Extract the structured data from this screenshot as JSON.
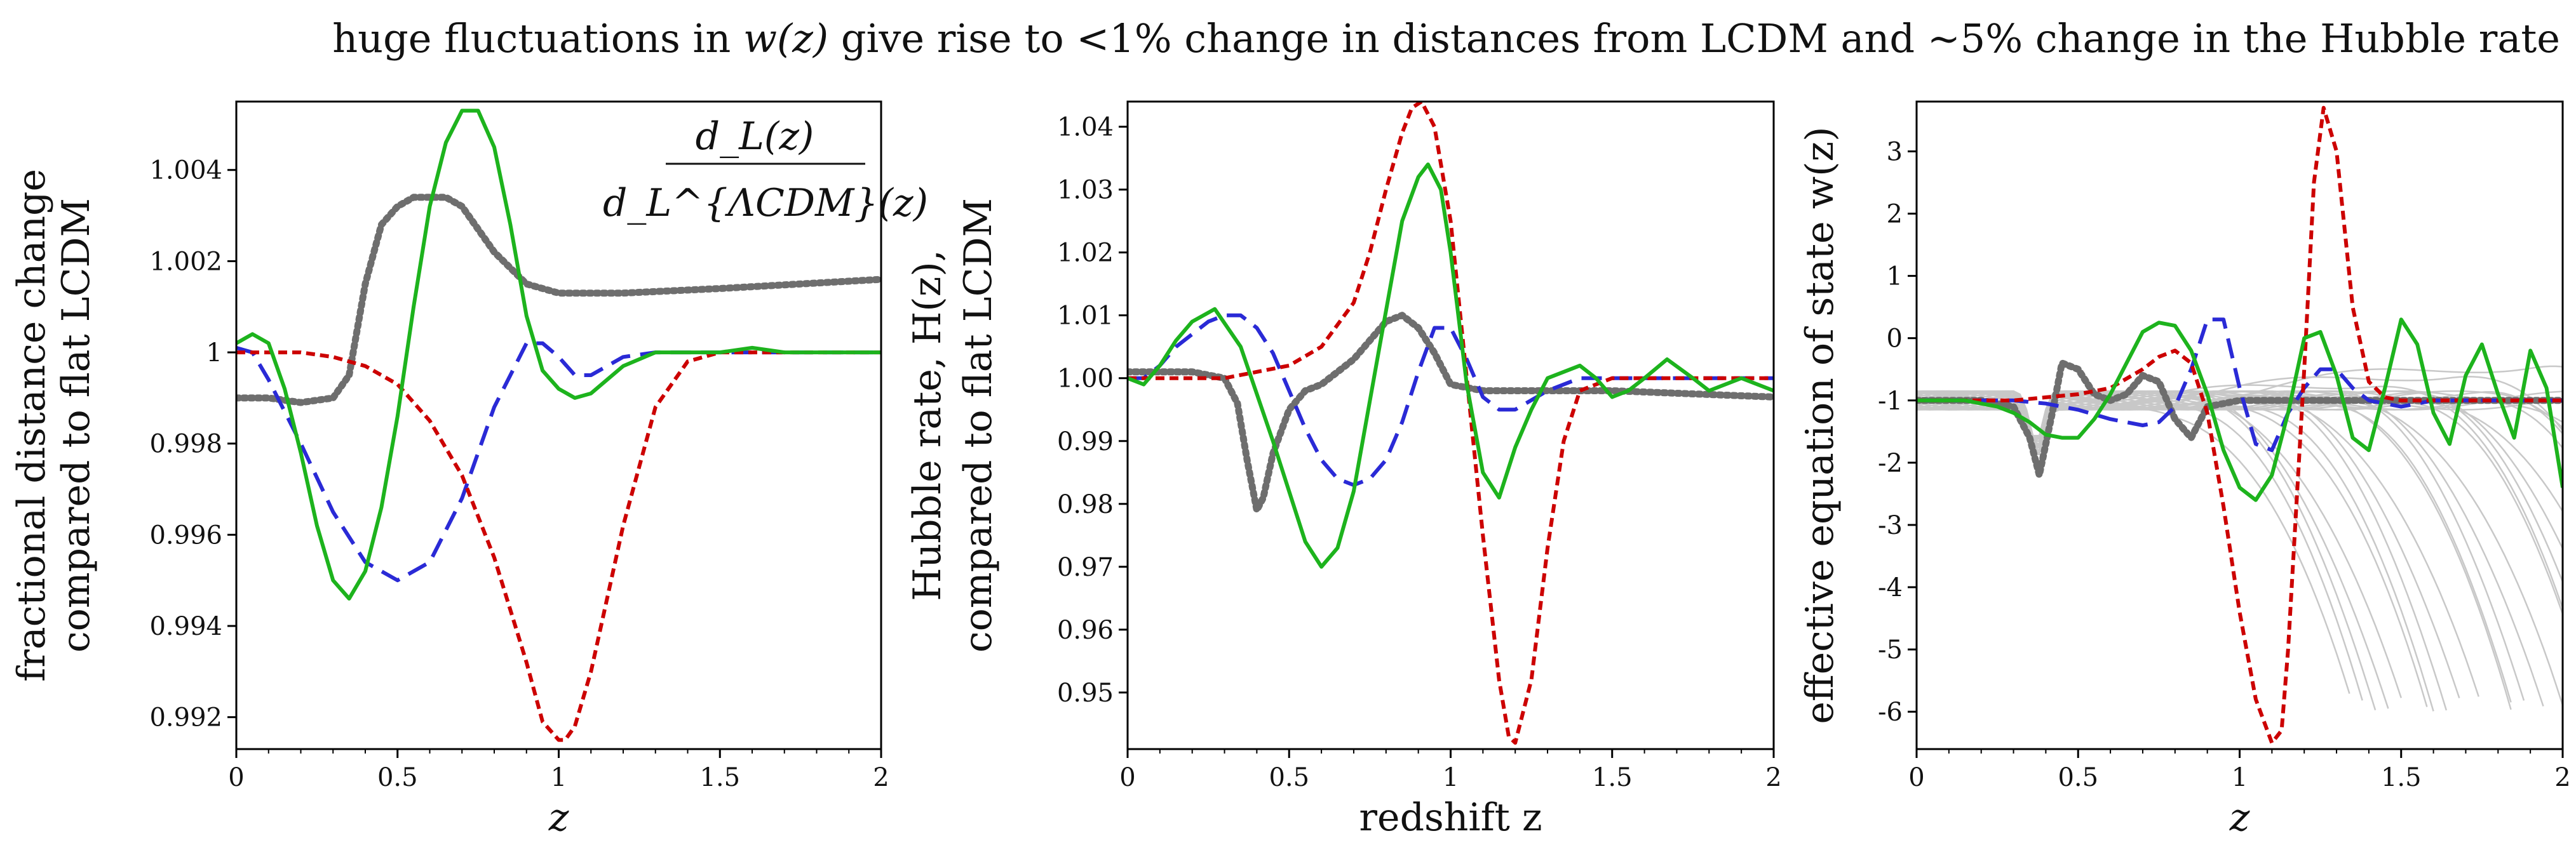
{
  "title_parts": [
    "huge fluctuations in ",
    "w(z)",
    " give rise to <1% change in distances from LCDM and ~5% change in the Hubble rate"
  ],
  "colors": {
    "green": "#1db31d",
    "red": "#cc0000",
    "blue": "#2a2ad6",
    "gray": "#6e6e6e",
    "background_curves": "#c8c8c8",
    "axis": "#000000"
  },
  "chart_data": [
    {
      "type": "line",
      "xlabel": "z",
      "ylabel": [
        "fractional distance change",
        "compared to flat LCDM"
      ],
      "annotation": {
        "numerator": "d_L(z)",
        "denominator": "d_L^{ΛCDM}(z)"
      },
      "xlim": [
        0,
        2
      ],
      "ylim": [
        0.9913,
        1.0055
      ],
      "xticks": [
        0,
        0.5,
        1,
        1.5,
        2
      ],
      "xtick_labels": [
        "0",
        "0.5",
        "1",
        "1.5",
        "2"
      ],
      "yticks": [
        0.992,
        0.994,
        0.996,
        0.998,
        1,
        1.002,
        1.004
      ],
      "ytick_labels": [
        "0.992",
        "0.994",
        "0.996",
        "0.998",
        "1",
        "1.002",
        "1.004"
      ],
      "series": [
        {
          "name": "green",
          "style": "solid",
          "x": [
            0,
            0.05,
            0.1,
            0.15,
            0.2,
            0.25,
            0.3,
            0.35,
            0.4,
            0.45,
            0.5,
            0.55,
            0.6,
            0.65,
            0.7,
            0.75,
            0.8,
            0.85,
            0.9,
            0.95,
            1.0,
            1.05,
            1.1,
            1.15,
            1.2,
            1.3,
            1.4,
            1.5,
            1.6,
            1.7,
            2.0
          ],
          "y": [
            1.0002,
            1.0004,
            1.0002,
            0.9992,
            0.9978,
            0.9962,
            0.995,
            0.9946,
            0.9952,
            0.9966,
            0.9986,
            1.001,
            1.0032,
            1.0046,
            1.0053,
            1.0053,
            1.0045,
            1.0028,
            1.0008,
            0.9996,
            0.9992,
            0.999,
            0.9991,
            0.9994,
            0.9997,
            1.0,
            1.0,
            1.0,
            1.0001,
            1.0,
            1.0
          ]
        },
        {
          "name": "red",
          "style": "dashed-fine",
          "x": [
            0,
            0.2,
            0.3,
            0.4,
            0.5,
            0.6,
            0.7,
            0.8,
            0.9,
            0.95,
            1.0,
            1.02,
            1.05,
            1.1,
            1.2,
            1.3,
            1.4,
            1.5,
            2.0
          ],
          "y": [
            1.0,
            1.0,
            0.9999,
            0.9997,
            0.9993,
            0.9985,
            0.9973,
            0.9955,
            0.9932,
            0.9919,
            0.9915,
            0.9915,
            0.9918,
            0.993,
            0.9962,
            0.9988,
            0.9998,
            1.0,
            1.0
          ]
        },
        {
          "name": "blue",
          "style": "dashed",
          "x": [
            0,
            0.05,
            0.1,
            0.2,
            0.3,
            0.4,
            0.5,
            0.6,
            0.7,
            0.8,
            0.9,
            0.95,
            1.0,
            1.05,
            1.1,
            1.15,
            1.2,
            1.3,
            1.4,
            1.5,
            2.0
          ],
          "y": [
            1.0001,
            1.0,
            0.9994,
            0.998,
            0.9965,
            0.9954,
            0.995,
            0.9954,
            0.9968,
            0.9988,
            1.0002,
            1.0002,
            0.9999,
            0.9995,
            0.9995,
            0.9997,
            0.9999,
            1.0,
            1.0,
            1.0,
            1.0
          ]
        },
        {
          "name": "gray",
          "style": "dotted",
          "x": [
            0,
            0.1,
            0.2,
            0.3,
            0.35,
            0.4,
            0.45,
            0.5,
            0.55,
            0.6,
            0.65,
            0.7,
            0.8,
            0.9,
            1.0,
            1.2,
            1.5,
            2.0
          ],
          "y": [
            0.999,
            0.999,
            0.9989,
            0.999,
            0.9995,
            1.0015,
            1.0028,
            1.0032,
            1.0034,
            1.0034,
            1.0034,
            1.0032,
            1.0022,
            1.0015,
            1.0013,
            1.0013,
            1.0014,
            1.0016
          ]
        }
      ]
    },
    {
      "type": "line",
      "xlabel": "redshift z",
      "ylabel": [
        "Hubble rate, H(z),",
        "compared to flat LCDM"
      ],
      "xlim": [
        0,
        2
      ],
      "ylim": [
        0.941,
        1.044
      ],
      "xticks": [
        0,
        0.5,
        1,
        1.5,
        2
      ],
      "xtick_labels": [
        "0",
        "0.5",
        "1",
        "1.5",
        "2"
      ],
      "yticks": [
        0.95,
        0.96,
        0.97,
        0.98,
        0.99,
        1.0,
        1.01,
        1.02,
        1.03,
        1.04
      ],
      "ytick_labels": [
        "0.95",
        "0.96",
        "0.97",
        "0.98",
        "0.99",
        "1.00",
        "1.01",
        "1.02",
        "1.03",
        "1.04"
      ],
      "series": [
        {
          "name": "green",
          "style": "solid",
          "x": [
            0,
            0.05,
            0.1,
            0.15,
            0.2,
            0.27,
            0.35,
            0.45,
            0.55,
            0.6,
            0.65,
            0.7,
            0.78,
            0.85,
            0.9,
            0.93,
            0.97,
            1.0,
            1.05,
            1.1,
            1.15,
            1.2,
            1.25,
            1.3,
            1.35,
            1.4,
            1.45,
            1.5,
            1.55,
            1.6,
            1.67,
            1.75,
            1.8,
            1.9,
            2.0
          ],
          "y": [
            1.0,
            0.999,
            1.002,
            1.006,
            1.009,
            1.011,
            1.005,
            0.99,
            0.974,
            0.97,
            0.973,
            0.982,
            1.005,
            1.025,
            1.032,
            1.034,
            1.03,
            1.02,
            0.999,
            0.985,
            0.981,
            0.989,
            0.995,
            1.0,
            1.001,
            1.002,
            1.0,
            0.997,
            0.998,
            1.0,
            1.003,
            1.0,
            0.998,
            1.0,
            0.998
          ]
        },
        {
          "name": "red",
          "style": "dashed-fine",
          "x": [
            0,
            0.2,
            0.3,
            0.4,
            0.5,
            0.6,
            0.7,
            0.75,
            0.8,
            0.85,
            0.88,
            0.91,
            0.95,
            1.0,
            1.05,
            1.1,
            1.15,
            1.18,
            1.2,
            1.25,
            1.3,
            1.35,
            1.4,
            1.5,
            1.6,
            2.0
          ],
          "y": [
            1.0,
            1.0,
            1.0,
            1.001,
            1.002,
            1.005,
            1.012,
            1.02,
            1.03,
            1.039,
            1.043,
            1.044,
            1.04,
            1.025,
            1.0,
            0.975,
            0.952,
            0.943,
            0.942,
            0.952,
            0.973,
            0.99,
            0.998,
            1.0,
            1.0,
            1.0
          ]
        },
        {
          "name": "blue",
          "style": "dashed",
          "x": [
            0,
            0.05,
            0.1,
            0.15,
            0.2,
            0.25,
            0.3,
            0.35,
            0.4,
            0.45,
            0.5,
            0.55,
            0.6,
            0.65,
            0.7,
            0.75,
            0.8,
            0.85,
            0.9,
            0.95,
            1.0,
            1.05,
            1.1,
            1.15,
            1.2,
            1.3,
            1.4,
            1.5,
            1.6,
            2.0
          ],
          "y": [
            1.0,
            1.0,
            1.002,
            1.005,
            1.007,
            1.009,
            1.01,
            1.01,
            1.008,
            1.004,
            0.998,
            0.992,
            0.987,
            0.984,
            0.983,
            0.984,
            0.987,
            0.993,
            1.001,
            1.008,
            1.008,
            1.003,
            0.997,
            0.995,
            0.995,
            0.998,
            1.0,
            1.0,
            1.0,
            1.0
          ]
        },
        {
          "name": "gray",
          "style": "dotted",
          "x": [
            0,
            0.1,
            0.2,
            0.3,
            0.34,
            0.37,
            0.4,
            0.42,
            0.45,
            0.5,
            0.55,
            0.6,
            0.7,
            0.8,
            0.85,
            0.9,
            0.95,
            1.0,
            1.1,
            1.2,
            1.5,
            2.0
          ],
          "y": [
            1.001,
            1.001,
            1.001,
            1.0,
            0.996,
            0.987,
            0.979,
            0.981,
            0.988,
            0.995,
            0.998,
            0.999,
            1.003,
            1.009,
            1.01,
            1.008,
            1.004,
            0.999,
            0.998,
            0.998,
            0.998,
            0.997
          ]
        }
      ]
    },
    {
      "type": "line",
      "xlabel": "z",
      "ylabel": [
        "effective equation of state w(z)"
      ],
      "xlim": [
        0,
        2
      ],
      "ylim": [
        -6.6,
        3.8
      ],
      "xticks": [
        0,
        0.5,
        1,
        1.5,
        2
      ],
      "xtick_labels": [
        "0",
        "0.5",
        "1",
        "1.5",
        "2"
      ],
      "yticks": [
        -6,
        -5,
        -4,
        -3,
        -2,
        -1,
        0,
        1,
        2,
        3
      ],
      "ytick_labels": [
        "-6",
        "-5",
        "-4",
        "-3",
        "-2",
        "-1",
        "0",
        "1",
        "2",
        "3"
      ],
      "series": [
        {
          "name": "green",
          "style": "solid",
          "x": [
            0,
            0.05,
            0.1,
            0.15,
            0.2,
            0.25,
            0.3,
            0.35,
            0.4,
            0.45,
            0.5,
            0.55,
            0.6,
            0.65,
            0.7,
            0.75,
            0.8,
            0.85,
            0.9,
            0.95,
            1.0,
            1.05,
            1.1,
            1.15,
            1.2,
            1.25,
            1.3,
            1.35,
            1.4,
            1.45,
            1.5,
            1.55,
            1.6,
            1.65,
            1.7,
            1.75,
            1.8,
            1.85,
            1.9,
            1.95,
            2.0
          ],
          "y": [
            -1.0,
            -1.0,
            -1.0,
            -1.0,
            -1.05,
            -1.1,
            -1.2,
            -1.35,
            -1.55,
            -1.6,
            -1.6,
            -1.3,
            -0.9,
            -0.4,
            0.1,
            0.25,
            0.2,
            -0.2,
            -0.9,
            -1.8,
            -2.4,
            -2.6,
            -2.2,
            -1.2,
            0.0,
            0.1,
            -0.6,
            -1.6,
            -1.8,
            -0.8,
            0.3,
            -0.1,
            -1.2,
            -1.7,
            -0.6,
            -0.1,
            -0.9,
            -1.6,
            -0.2,
            -0.8,
            -2.4
          ]
        },
        {
          "name": "red",
          "style": "dashed-fine",
          "x": [
            0,
            0.2,
            0.3,
            0.4,
            0.5,
            0.6,
            0.7,
            0.75,
            0.8,
            0.85,
            0.9,
            0.95,
            1.0,
            1.05,
            1.1,
            1.13,
            1.15,
            1.2,
            1.23,
            1.26,
            1.3,
            1.35,
            1.4,
            1.45,
            1.5,
            2.0
          ],
          "y": [
            -1.0,
            -1.0,
            -1.0,
            -0.95,
            -0.9,
            -0.8,
            -0.5,
            -0.3,
            -0.2,
            -0.4,
            -1.2,
            -2.7,
            -4.4,
            -5.8,
            -6.5,
            -6.3,
            -5.0,
            -0.5,
            2.5,
            3.7,
            3.0,
            0.5,
            -0.7,
            -0.95,
            -1.0,
            -1.0
          ]
        },
        {
          "name": "blue",
          "style": "dashed",
          "x": [
            0,
            0.1,
            0.2,
            0.3,
            0.4,
            0.5,
            0.6,
            0.7,
            0.75,
            0.8,
            0.85,
            0.9,
            0.95,
            1.0,
            1.05,
            1.1,
            1.15,
            1.2,
            1.25,
            1.3,
            1.35,
            1.4,
            1.5,
            1.6,
            1.7,
            2.0
          ],
          "y": [
            -1.0,
            -1.0,
            -1.0,
            -1.0,
            -1.05,
            -1.15,
            -1.3,
            -1.4,
            -1.35,
            -1.1,
            -0.5,
            0.3,
            0.3,
            -0.8,
            -1.7,
            -1.8,
            -1.2,
            -0.8,
            -0.5,
            -0.5,
            -0.8,
            -1.0,
            -1.1,
            -1.0,
            -1.0,
            -1.0
          ]
        },
        {
          "name": "gray",
          "style": "dotted",
          "x": [
            0,
            0.1,
            0.2,
            0.3,
            0.35,
            0.38,
            0.42,
            0.45,
            0.5,
            0.55,
            0.6,
            0.65,
            0.7,
            0.75,
            0.8,
            0.85,
            0.9,
            1.0,
            1.2,
            1.5,
            2.0
          ],
          "y": [
            -1.0,
            -1.0,
            -1.0,
            -1.1,
            -1.6,
            -2.2,
            -1.2,
            -0.4,
            -0.5,
            -0.9,
            -1.0,
            -0.9,
            -0.6,
            -0.7,
            -1.3,
            -1.6,
            -1.1,
            -1.0,
            -1.0,
            -1.0,
            -1.0
          ]
        }
      ]
    }
  ]
}
